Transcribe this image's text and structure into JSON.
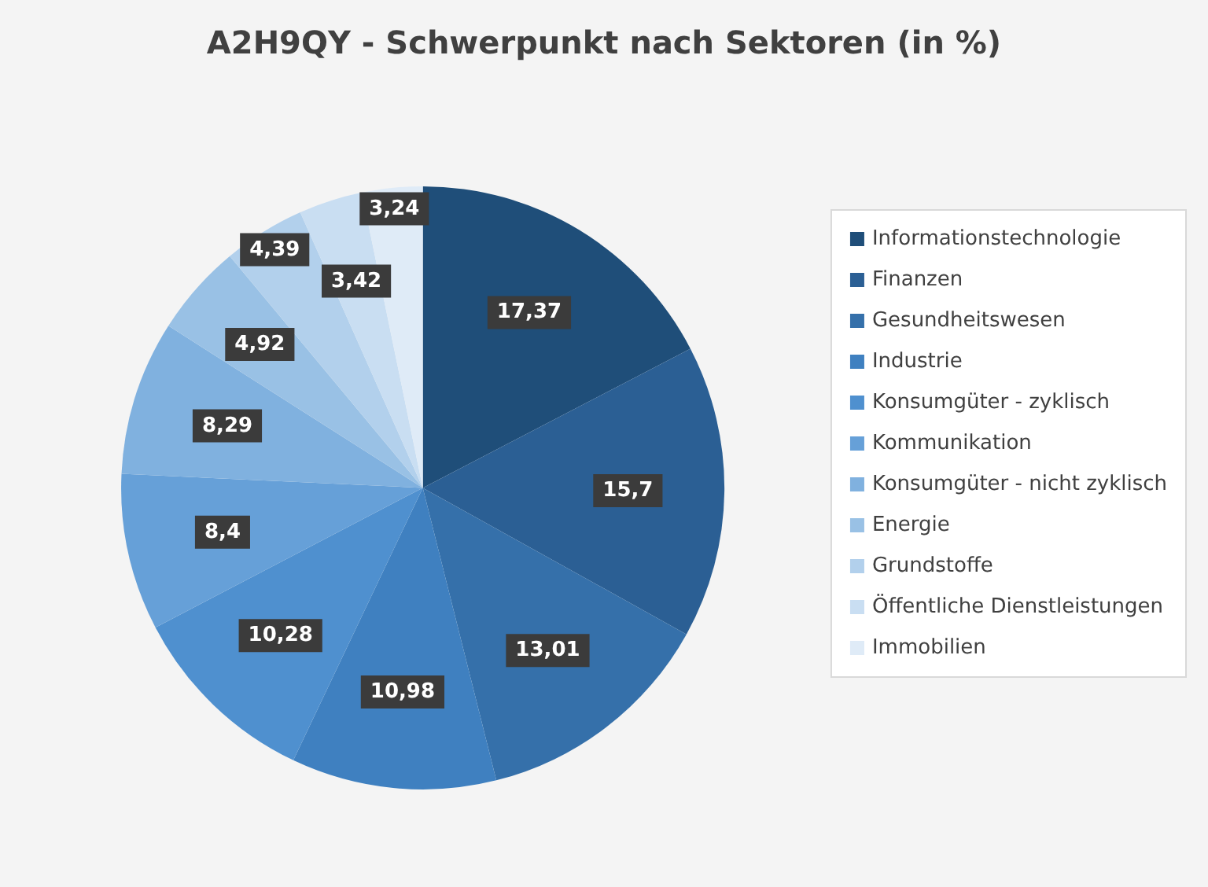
{
  "chart_data": {
    "type": "pie",
    "title": "A2H9QY - Schwerpunkt nach Sektoren (in %)",
    "categories": [
      "Informationstechnologie",
      "Finanzen",
      "Gesundheitswesen",
      "Industrie",
      "Konsumgüter - zyklisch",
      "Kommunikation",
      "Konsumgüter - nicht zyklisch",
      "Energie",
      "Grundstoffe",
      "Öffentliche Dienstleistungen",
      "Immobilien"
    ],
    "values": [
      17.37,
      15.7,
      13.01,
      10.98,
      10.28,
      8.4,
      8.29,
      4.92,
      4.39,
      3.42,
      3.24
    ],
    "value_labels": [
      "17,37",
      "15,7",
      "13,01",
      "10,98",
      "10,28",
      "8,4",
      "8,29",
      "4,92",
      "4,39",
      "3,42",
      "3,24"
    ],
    "colors": [
      "#1f4e79",
      "#2b5f94",
      "#3570aa",
      "#3f80c0",
      "#4f90cf",
      "#66a0d8",
      "#80b1df",
      "#99c1e5",
      "#b2d0ec",
      "#c9def2",
      "#dfebf7"
    ],
    "legend": "right"
  }
}
